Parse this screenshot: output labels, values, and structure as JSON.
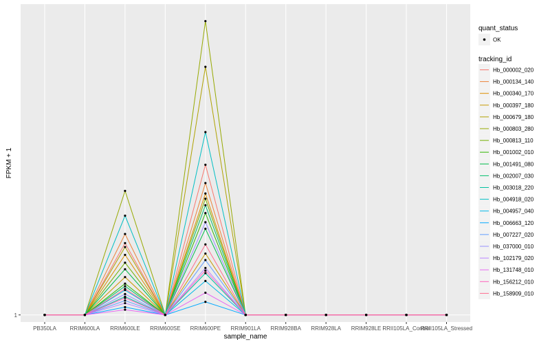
{
  "chart_data": {
    "type": "line",
    "title": "",
    "xlabel": "sample_name",
    "ylabel": "FPKM + 1",
    "y_tick_labels": [
      "1"
    ],
    "y_tick_values": [
      1
    ],
    "ylim": [
      0.46,
      24.8
    ],
    "categories": [
      "PB350LA",
      "RRIM600LA",
      "RRIM600LE",
      "RRIM600SE",
      "RRIM600PE",
      "RRIM901LA",
      "RRIM928BA",
      "RRIM928LA",
      "RRIM928LE",
      "RRII105LA_Control",
      "RRII105LA_Stressed"
    ],
    "shape_legend": {
      "title": "quant_status",
      "entries": [
        "OK"
      ]
    },
    "color_legend_title": "tracking_id",
    "series": [
      {
        "name": "Hb_000002_020",
        "color": "#F8766D",
        "values": [
          1,
          1,
          6.5,
          1,
          12.5,
          1,
          1,
          1,
          1,
          1,
          1
        ]
      },
      {
        "name": "Hb_000134_140",
        "color": "#EC8239",
        "values": [
          1,
          1,
          7.2,
          1,
          11.1,
          1,
          1,
          1,
          1,
          1,
          1
        ]
      },
      {
        "name": "Hb_000340_170",
        "color": "#DB8E00",
        "values": [
          1,
          1,
          5.6,
          1,
          10.3,
          1,
          1,
          1,
          1,
          1,
          1
        ]
      },
      {
        "name": "Hb_000397_180",
        "color": "#C79800",
        "values": [
          1,
          1,
          3.9,
          1,
          5.7,
          1,
          1,
          1,
          1,
          1,
          1
        ]
      },
      {
        "name": "Hb_000679_180",
        "color": "#AFA100",
        "values": [
          1,
          1,
          6.2,
          1,
          20.0,
          1,
          1,
          1,
          1,
          1,
          1
        ]
      },
      {
        "name": "Hb_000803_280",
        "color": "#96A900",
        "values": [
          1,
          1,
          10.5,
          1,
          23.5,
          1,
          1,
          1,
          1,
          1,
          1
        ]
      },
      {
        "name": "Hb_000813_110",
        "color": "#72B000",
        "values": [
          1,
          1,
          5.0,
          1,
          9.9,
          1,
          1,
          1,
          1,
          1,
          1
        ]
      },
      {
        "name": "Hb_001002_010",
        "color": "#2FB600",
        "values": [
          1,
          1,
          3.4,
          1,
          8.8,
          1,
          1,
          1,
          1,
          1,
          1
        ]
      },
      {
        "name": "Hb_001491_080",
        "color": "#00BB4B",
        "values": [
          1,
          1,
          4.5,
          1,
          7.6,
          1,
          1,
          1,
          1,
          1,
          1
        ]
      },
      {
        "name": "Hb_002007_030",
        "color": "#00BE6C",
        "values": [
          1,
          1,
          3.2,
          1,
          9.4,
          1,
          1,
          1,
          1,
          1,
          1
        ]
      },
      {
        "name": "Hb_003018_220",
        "color": "#00C0A0",
        "values": [
          1,
          1,
          2.4,
          1,
          4.2,
          1,
          1,
          1,
          1,
          1,
          1
        ]
      },
      {
        "name": "Hb_004918_020",
        "color": "#00BFC4",
        "values": [
          1,
          1,
          8.6,
          1,
          15.0,
          1,
          1,
          1,
          1,
          1,
          1
        ]
      },
      {
        "name": "Hb_004957_040",
        "color": "#00B8E7",
        "values": [
          1,
          1,
          2.9,
          1,
          3.6,
          1,
          1,
          1,
          1,
          1,
          1
        ]
      },
      {
        "name": "Hb_006663_120",
        "color": "#00A9FF",
        "values": [
          1,
          1,
          1.6,
          1,
          2.0,
          1,
          1,
          1,
          1,
          1,
          1
        ]
      },
      {
        "name": "Hb_007227_020",
        "color": "#619CFF",
        "values": [
          1,
          1,
          2.1,
          1,
          5.2,
          1,
          1,
          1,
          1,
          1,
          1
        ]
      },
      {
        "name": "Hb_037000_010",
        "color": "#9590FF",
        "values": [
          1,
          1,
          2.6,
          1,
          8.1,
          1,
          1,
          1,
          1,
          1,
          1
        ]
      },
      {
        "name": "Hb_102179_020",
        "color": "#B983FF",
        "values": [
          1,
          1,
          1.9,
          1,
          4.6,
          1,
          1,
          1,
          1,
          1,
          1
        ]
      },
      {
        "name": "Hb_131748_010",
        "color": "#E76BF3",
        "values": [
          1,
          1,
          1.4,
          1,
          2.7,
          1,
          1,
          1,
          1,
          1,
          1
        ]
      },
      {
        "name": "Hb_156212_010",
        "color": "#FF62BC",
        "values": [
          1,
          1,
          2.3,
          1,
          4.4,
          1,
          1,
          1,
          1,
          1,
          1
        ]
      },
      {
        "name": "Hb_158909_010",
        "color": "#FF6C90",
        "values": [
          1,
          1,
          3.0,
          1,
          6.4,
          1,
          1,
          1,
          1,
          1,
          1
        ]
      }
    ]
  }
}
